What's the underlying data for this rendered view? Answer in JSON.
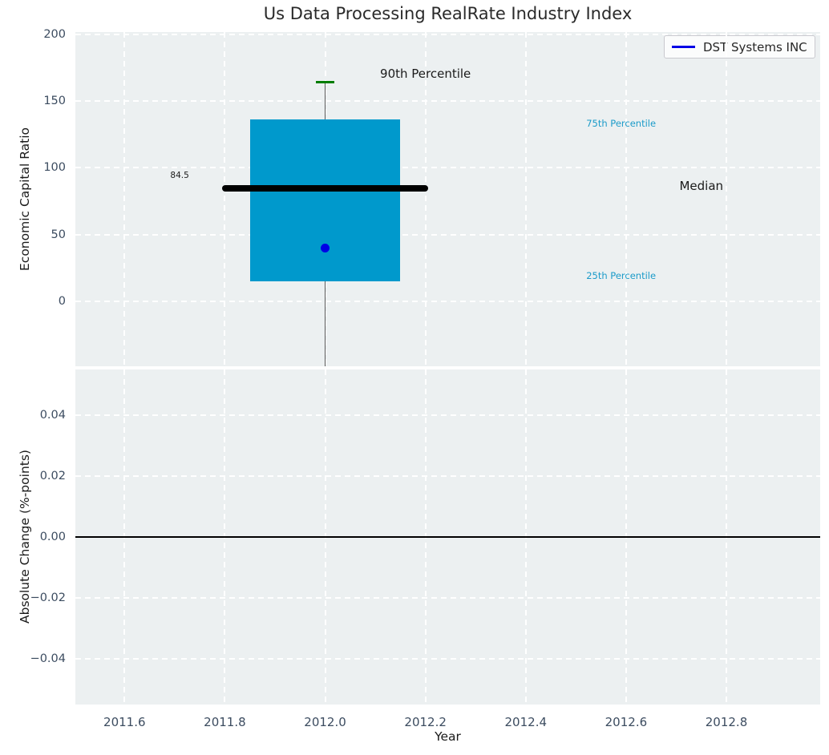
{
  "figure": {
    "title": "Us Data Processing RealRate Industry Index",
    "background_color": "#ffffff",
    "axes_background_color": "#ecf0f1",
    "grid_color": "#ffffff",
    "grid_style": "dashed"
  },
  "legend": {
    "label": "DST Systems INC",
    "line_color": "#0000e6",
    "position": "upper-right"
  },
  "x_axis": {
    "label": "Year",
    "ticks": [
      2011.6,
      2011.8,
      2012.0,
      2012.2,
      2012.4,
      2012.6,
      2012.8
    ],
    "tick_labels": [
      "2011.6",
      "2011.8",
      "2012.0",
      "2012.2",
      "2012.4",
      "2012.6",
      "2012.8"
    ],
    "xlim": [
      2011.502,
      2012.987
    ]
  },
  "chart_data": [
    {
      "type": "box",
      "title": "Us Data Processing RealRate Industry Index",
      "ylabel": "Economic Capital Ratio",
      "ylim": [
        -48.6,
        201.6
      ],
      "yticks": [
        0,
        50,
        100,
        150,
        200
      ],
      "ytick_labels": [
        "0",
        "50",
        "100",
        "150",
        "200"
      ],
      "grid": true,
      "box": {
        "x": 2012.0,
        "q25": 15,
        "median": 84.5,
        "q75": 136,
        "p90": 164,
        "whisker_low_clipped_below_axis": true,
        "box_halfwidth_years": 0.15,
        "median_halfwidth_years": 0.205,
        "cap_halfwidth_years": 0.018,
        "box_color": "#0099cc",
        "median_color": "#000000",
        "cap_color": "#007d00",
        "whisker_color": "#5a5a5a"
      },
      "company_point": {
        "name": "DST Systems INC",
        "x": 2012.0,
        "y": 40,
        "color": "#0000e6"
      },
      "annotations": [
        {
          "text": "90th Percentile",
          "x": 2012.2,
          "y": 170,
          "color": "#1a1a1a",
          "size": 15
        },
        {
          "text": "75th Percentile",
          "x": 2012.59,
          "y": 133,
          "color": "#1c9bc9",
          "size": 11.5
        },
        {
          "text": "Median",
          "x": 2012.75,
          "y": 86,
          "color": "#1a1a1a",
          "size": 15
        },
        {
          "text": "25th Percentile",
          "x": 2012.59,
          "y": 19.3,
          "color": "#1c9bc9",
          "size": 11.5
        },
        {
          "text": "84.5",
          "x": 2011.71,
          "y": 94,
          "color": "#1a1a1a",
          "size": 10.5
        }
      ]
    },
    {
      "type": "line",
      "ylabel": "Absolute Change (%-points)",
      "xlabel": "Year",
      "ylim": [
        -0.055,
        0.0549
      ],
      "yticks": [
        0.04,
        0.02,
        0.0,
        -0.02,
        -0.04
      ],
      "ytick_labels": [
        "0.04",
        "0.02",
        "0.00",
        "−0.02",
        "−0.04"
      ],
      "grid": true,
      "zero_line": {
        "y": 0.0,
        "color": "#000000"
      },
      "series": []
    }
  ]
}
